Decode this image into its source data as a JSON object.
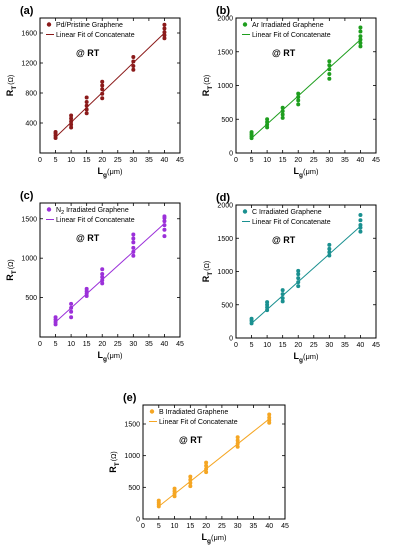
{
  "figure": {
    "y_axis_label_main": "R",
    "y_axis_label_sub": "T",
    "y_axis_label_unit": "(Ω)",
    "x_axis_label_main": "L",
    "x_axis_label_sub": "g",
    "x_axis_label_unit": "(μm)",
    "annotation": "@ RT",
    "fit_label": "Linear Fit of Concatenate"
  },
  "chart_data": [
    {
      "type": "scatter",
      "panel_label": "(a)",
      "legend_prefix": "Pd/Pristine Graphene",
      "legend_sub": "",
      "legend_suffix": "",
      "color": "#8b1a1a",
      "xlim": [
        0,
        45
      ],
      "ylim": [
        0,
        1800
      ],
      "xticks": [
        "0",
        "5",
        "10",
        "15",
        "20",
        "25",
        "30",
        "35",
        "40",
        "45"
      ],
      "yticks": [
        "400",
        "800",
        "1200",
        "1600"
      ],
      "ytick_values": [
        400,
        800,
        1200,
        1600
      ],
      "points": {
        "5": [
          200,
          230,
          260,
          280
        ],
        "10": [
          340,
          380,
          420,
          460,
          500
        ],
        "15": [
          530,
          580,
          630,
          680,
          740
        ],
        "20": [
          730,
          790,
          850,
          900,
          950
        ],
        "30": [
          1110,
          1160,
          1220,
          1280
        ],
        "40": [
          1530,
          1570,
          1610,
          1660,
          1710
        ]
      },
      "fit": {
        "x": [
          5,
          40
        ],
        "y": [
          210,
          1600
        ]
      }
    },
    {
      "type": "scatter",
      "panel_label": "(b)",
      "legend_prefix": "Ar Irradiated Graphene",
      "legend_sub": "",
      "legend_suffix": "",
      "color": "#1e9e1e",
      "xlim": [
        0,
        45
      ],
      "ylim": [
        0,
        2000
      ],
      "xticks": [
        "0",
        "5",
        "10",
        "15",
        "20",
        "25",
        "30",
        "35",
        "40",
        "45"
      ],
      "yticks": [
        "0",
        "500",
        "1000",
        "1500",
        "2000"
      ],
      "ytick_values": [
        0,
        500,
        1000,
        1500,
        2000
      ],
      "points": {
        "5": [
          220,
          250,
          280,
          310
        ],
        "10": [
          380,
          420,
          460,
          500
        ],
        "15": [
          520,
          570,
          620,
          670
        ],
        "20": [
          720,
          780,
          830,
          880
        ],
        "30": [
          1100,
          1170,
          1240,
          1300,
          1360
        ],
        "40": [
          1580,
          1630,
          1680,
          1730,
          1800,
          1860
        ]
      },
      "fit": {
        "x": [
          5,
          40
        ],
        "y": [
          220,
          1680
        ]
      }
    },
    {
      "type": "scatter",
      "panel_label": "(c)",
      "legend_prefix": "N",
      "legend_sub": "2",
      "legend_suffix": " Irradiated Graphene",
      "color": "#9b30d9",
      "xlim": [
        0,
        45
      ],
      "ylim": [
        0,
        1700
      ],
      "xticks": [
        "0",
        "5",
        "10",
        "15",
        "20",
        "25",
        "30",
        "35",
        "40",
        "45"
      ],
      "yticks": [
        "500",
        "1000",
        "1500"
      ],
      "ytick_values": [
        500,
        1000,
        1500
      ],
      "points": {
        "5": [
          160,
          190,
          220,
          250
        ],
        "10": [
          250,
          320,
          370,
          420
        ],
        "15": [
          520,
          550,
          580,
          610
        ],
        "20": [
          680,
          720,
          760,
          800,
          860
        ],
        "30": [
          1030,
          1080,
          1130,
          1200,
          1250,
          1300
        ],
        "40": [
          1280,
          1360,
          1420,
          1470,
          1510,
          1530
        ]
      },
      "fit": {
        "x": [
          5,
          40
        ],
        "y": [
          190,
          1440
        ]
      }
    },
    {
      "type": "scatter",
      "panel_label": "(d)",
      "legend_prefix": "C Irradiated Graphene",
      "legend_sub": "",
      "legend_suffix": "",
      "color": "#1a9090",
      "xlim": [
        0,
        45
      ],
      "ylim": [
        0,
        2000
      ],
      "xticks": [
        "0",
        "5",
        "10",
        "15",
        "20",
        "25",
        "30",
        "35",
        "40",
        "45"
      ],
      "yticks": [
        "0",
        "500",
        "1000",
        "1500",
        "2000"
      ],
      "ytick_values": [
        0,
        500,
        1000,
        1500,
        2000
      ],
      "points": {
        "5": [
          220,
          260,
          290
        ],
        "10": [
          420,
          460,
          500,
          540
        ],
        "15": [
          550,
          600,
          660,
          720
        ],
        "20": [
          780,
          840,
          900,
          960,
          1010
        ],
        "30": [
          1240,
          1290,
          1340,
          1400
        ],
        "40": [
          1600,
          1660,
          1700,
          1770,
          1850
        ]
      },
      "fit": {
        "x": [
          5,
          40
        ],
        "y": [
          220,
          1680
        ]
      }
    },
    {
      "type": "scatter",
      "panel_label": "(e)",
      "legend_prefix": "B Irradiated Graphene",
      "legend_sub": "",
      "legend_suffix": "",
      "color": "#f5a623",
      "xlim": [
        0,
        45
      ],
      "ylim": [
        0,
        1800
      ],
      "xticks": [
        "0",
        "5",
        "10",
        "15",
        "20",
        "25",
        "30",
        "35",
        "40",
        "45"
      ],
      "yticks": [
        "0",
        "500",
        "1000",
        "1500"
      ],
      "ytick_values": [
        0,
        500,
        1000,
        1500
      ],
      "points": {
        "5": [
          200,
          230,
          260,
          290
        ],
        "10": [
          360,
          400,
          440,
          480
        ],
        "15": [
          520,
          570,
          620,
          670
        ],
        "20": [
          740,
          790,
          840,
          890
        ],
        "30": [
          1140,
          1190,
          1240,
          1290
        ],
        "40": [
          1520,
          1560,
          1600,
          1650
        ]
      },
      "fit": {
        "x": [
          5,
          40
        ],
        "y": [
          200,
          1580
        ]
      }
    }
  ]
}
